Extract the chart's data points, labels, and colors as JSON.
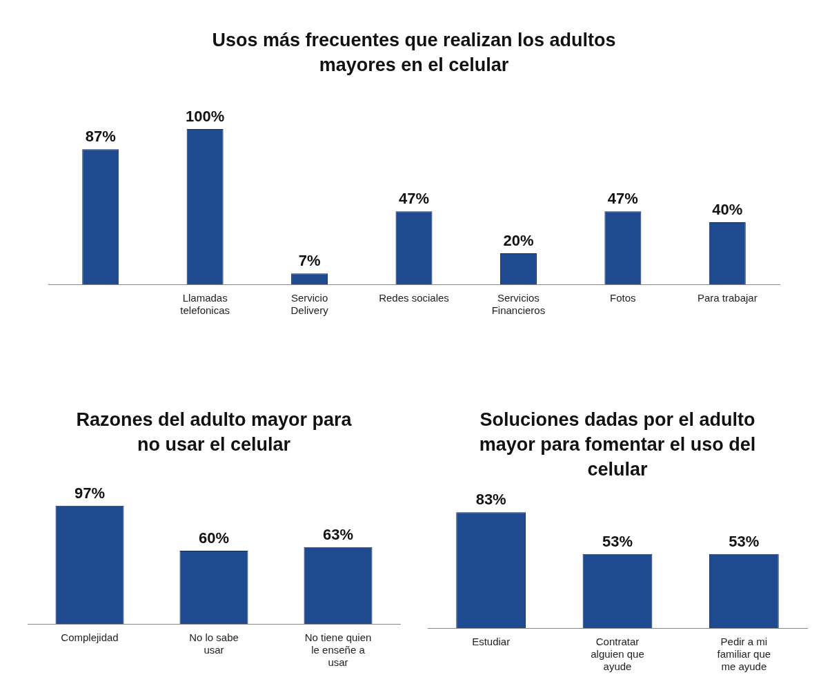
{
  "chart_data": [
    {
      "type": "bar",
      "title": "Usos más frecuentes que realizan los adultos mayores en el celular",
      "categories": [
        null,
        "Llamadas telefonicas",
        "Servicio Delivery",
        "Redes sociales",
        "Servicios Financieros",
        "Fotos",
        "Para trabajar"
      ],
      "values": [
        87,
        100,
        7,
        47,
        20,
        47,
        40
      ],
      "value_labels": [
        "87%",
        "100%",
        "7%",
        "47%",
        "20%",
        "47%",
        "40%"
      ],
      "color": "#1f4a8f",
      "grid": false,
      "legend": false,
      "tick_labels": "x"
    },
    {
      "type": "bar",
      "title": "Razones del adulto mayor para no usar el celular",
      "categories": [
        "Complejidad",
        "No lo sabe usar",
        "No tiene quien le enseñe a usar"
      ],
      "values": [
        97,
        60,
        63
      ],
      "value_labels": [
        "97%",
        "60%",
        "63%"
      ],
      "color": "#1f4a8f",
      "grid": false,
      "legend": false,
      "tick_labels": "x"
    },
    {
      "type": "bar",
      "title": "Soluciones dadas por el adulto mayor para fomentar el uso del celular",
      "categories": [
        "Estudiar",
        "Contratar alguien que ayude",
        "Pedir a mi familiar que me ayude"
      ],
      "values": [
        83,
        53,
        53
      ],
      "value_labels": [
        "83%",
        "53%",
        "53%"
      ],
      "color": "#1f4a8f",
      "grid": false,
      "legend": false,
      "tick_labels": "x"
    }
  ]
}
